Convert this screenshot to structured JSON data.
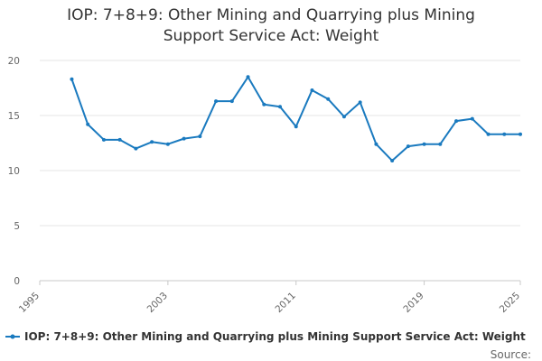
{
  "chart_data": {
    "type": "line",
    "title_lines": [
      "IOP: 7+8+9: Other Mining and Quarrying plus Mining",
      "Support Service Act: Weight"
    ],
    "xlabel": "",
    "ylabel": "",
    "xlim": [
      1995,
      2025
    ],
    "ylim": [
      0,
      20
    ],
    "x_ticks": [
      1995,
      2003,
      2011,
      2019,
      2025
    ],
    "y_ticks": [
      0,
      5,
      10,
      15,
      20
    ],
    "grid": "horizontal",
    "legend_position": "bottom",
    "series": [
      {
        "name": "IOP: 7+8+9: Other Mining and Quarrying plus Mining Support Service Act: Weight",
        "color": "#1a7abf",
        "x": [
          1997,
          1998,
          1999,
          2000,
          2001,
          2002,
          2003,
          2004,
          2005,
          2006,
          2007,
          2008,
          2009,
          2010,
          2011,
          2012,
          2013,
          2014,
          2015,
          2016,
          2017,
          2018,
          2019,
          2020,
          2021,
          2022,
          2023,
          2024,
          2025
        ],
        "y": [
          18.3,
          14.2,
          12.8,
          12.8,
          12.0,
          12.6,
          12.4,
          12.9,
          13.1,
          16.3,
          16.3,
          18.5,
          16.0,
          15.8,
          14.0,
          17.3,
          16.5,
          14.9,
          16.2,
          12.4,
          10.9,
          12.2,
          12.4,
          12.4,
          14.5,
          14.7,
          13.3,
          13.3,
          13.3
        ]
      }
    ]
  },
  "source_label": "Source:"
}
